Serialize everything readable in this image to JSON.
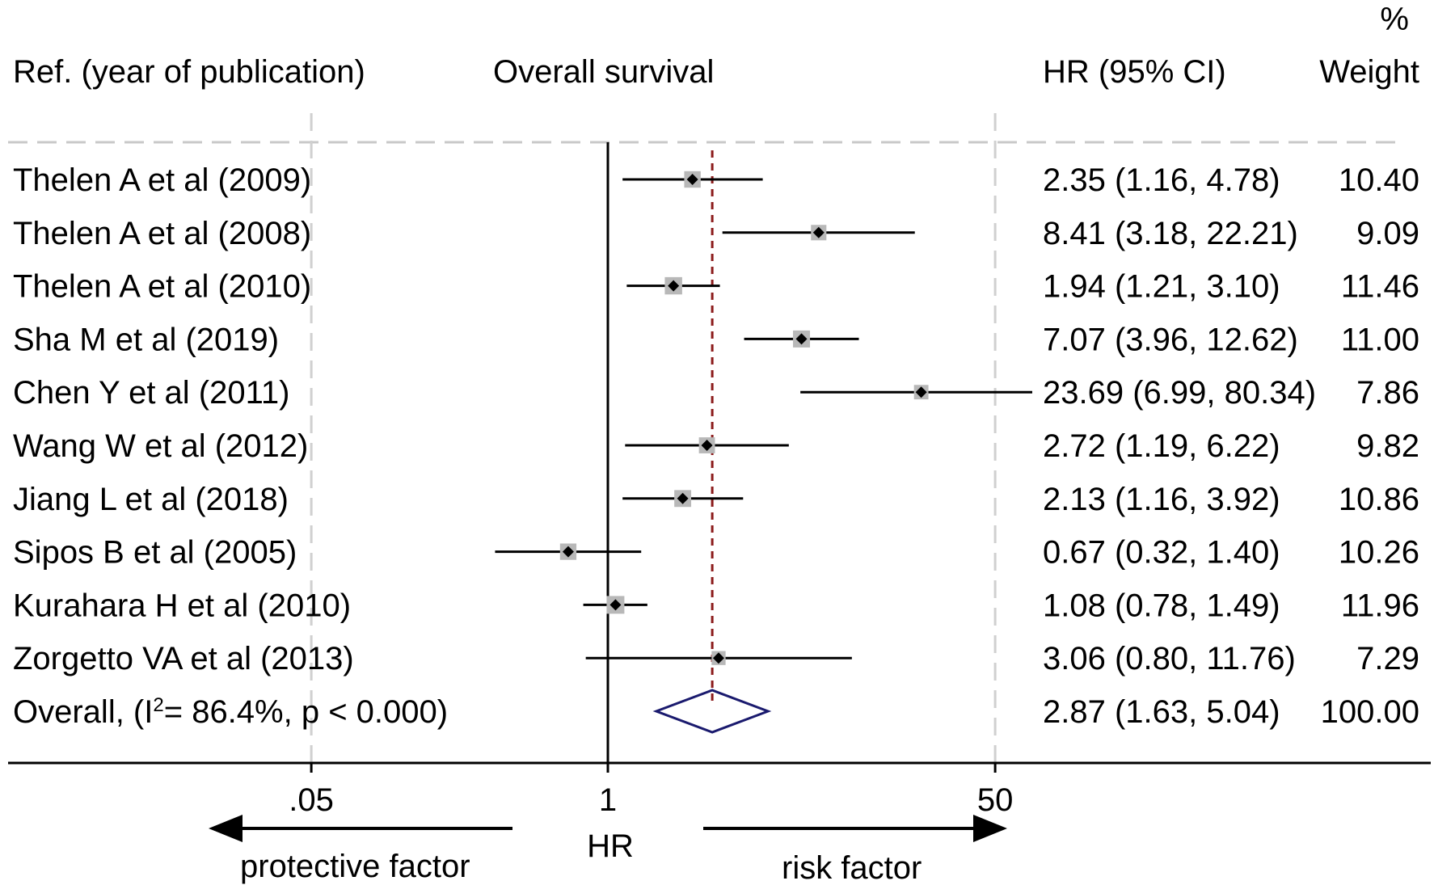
{
  "chart_data": {
    "type": "forest",
    "headers": {
      "ref": "Ref. (year of publication)",
      "outcome": "Overall survival",
      "hr": "HR (95% CI)",
      "weight_pct": "%",
      "weight": "Weight"
    },
    "studies": [
      {
        "label": "Thelen A et al (2009)",
        "hr": 2.35,
        "lo": 1.16,
        "hi": 4.78,
        "ci_text": "2.35 (1.16, 4.78)",
        "weight": "10.40"
      },
      {
        "label": "Thelen A et al (2008)",
        "hr": 8.41,
        "lo": 3.18,
        "hi": 22.21,
        "ci_text": "8.41 (3.18, 22.21)",
        "weight": "9.09"
      },
      {
        "label": "Thelen A et al (2010)",
        "hr": 1.94,
        "lo": 1.21,
        "hi": 3.1,
        "ci_text": "1.94 (1.21, 3.10)",
        "weight": "11.46"
      },
      {
        "label": "Sha M et al (2019)",
        "hr": 7.07,
        "lo": 3.96,
        "hi": 12.62,
        "ci_text": "7.07 (3.96, 12.62)",
        "weight": "11.00"
      },
      {
        "label": "Chen Y et al (2011)",
        "hr": 23.69,
        "lo": 6.99,
        "hi": 80.34,
        "ci_text": "23.69 (6.99, 80.34)",
        "weight": "7.86"
      },
      {
        "label": "Wang W et al (2012)",
        "hr": 2.72,
        "lo": 1.19,
        "hi": 6.22,
        "ci_text": "2.72 (1.19, 6.22)",
        "weight": "9.82"
      },
      {
        "label": "Jiang L et al (2018)",
        "hr": 2.13,
        "lo": 1.16,
        "hi": 3.92,
        "ci_text": "2.13 (1.16, 3.92)",
        "weight": "10.86"
      },
      {
        "label": "Sipos B et al (2005)",
        "hr": 0.67,
        "lo": 0.32,
        "hi": 1.4,
        "ci_text": "0.67 (0.32, 1.40)",
        "weight": "10.26"
      },
      {
        "label": "Kurahara H et al (2010)",
        "hr": 1.08,
        "lo": 0.78,
        "hi": 1.49,
        "ci_text": "1.08 (0.78, 1.49)",
        "weight": "11.96"
      },
      {
        "label": "Zorgetto VA et al (2013)",
        "hr": 3.06,
        "lo": 0.8,
        "hi": 11.76,
        "ci_text": "3.06 (0.80, 11.76)",
        "weight": "7.29"
      }
    ],
    "overall": {
      "label_prefix": "Overall,  (I",
      "label_sup": "2",
      "label_suffix": "= 86.4%, p < 0.000)",
      "hr": 2.87,
      "lo": 1.63,
      "hi": 5.04,
      "ci_text": "2.87 (1.63, 5.04)",
      "weight": "100.00"
    },
    "axis": {
      "scale": "log",
      "ticks": [
        {
          "value": 0.05,
          "label": ".05"
        },
        {
          "value": 1,
          "label": "1"
        },
        {
          "value": 50,
          "label": "50"
        }
      ],
      "null_value": 1,
      "xlabel": "HR"
    },
    "annotations": {
      "left_arrow": "protective factor",
      "right_arrow": "risk factor"
    },
    "colors": {
      "ci_line": "#000000",
      "weight_box": "#b8b8b8",
      "point": "#000000",
      "overall_line": "#8b1a1a",
      "diamond": "#1a1a6e",
      "grid": "#d0d0d0"
    }
  }
}
